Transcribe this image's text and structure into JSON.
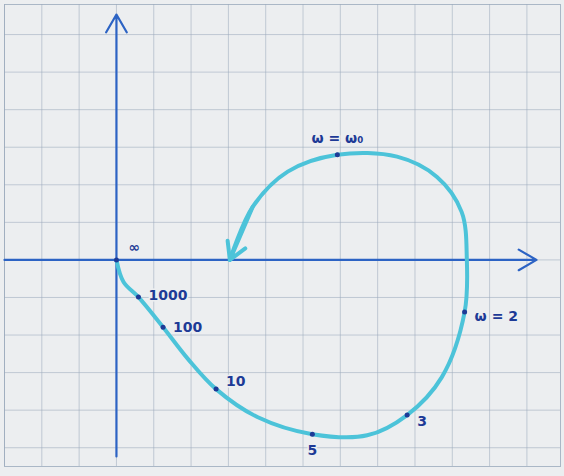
{
  "chart_data": {
    "type": "line",
    "x": [
      0,
      0.19,
      0.59,
      1.25,
      1.92,
      2.67,
      3.79,
      5.25,
      6.72,
      7.79,
      8.72,
      9.33,
      9.39,
      9.25,
      8.59,
      7.52,
      5.92,
      4.59,
      3.65,
      3.04
    ],
    "values": [
      0,
      -0.59,
      -0.99,
      -1.79,
      -2.64,
      -3.44,
      -4.19,
      -4.64,
      -4.67,
      -4.13,
      -3.12,
      -1.39,
      0,
      1.28,
      2.21,
      2.75,
      2.8,
      2.35,
      1.41,
      0
    ],
    "labels": [
      "∞",
      null,
      "1000",
      "100",
      null,
      "10",
      null,
      "5",
      null,
      "3",
      null,
      "ω = 2",
      null,
      null,
      null,
      null,
      "ω = ω₀",
      null,
      null,
      null
    ],
    "color": "#4cc3d9",
    "marker": "tick",
    "xlim": [
      -3,
      11.9
    ],
    "ylim": [
      -5.5,
      6.8
    ],
    "xticks": [
      -3,
      -2,
      -1,
      0,
      1,
      2,
      3,
      4,
      5,
      6,
      7,
      8,
      9,
      10,
      11
    ],
    "yticks": [
      -5,
      -4,
      -3,
      -2,
      -1,
      0,
      1,
      2,
      3,
      4,
      5,
      6
    ],
    "grid": true,
    "tick_labels": false
  }
}
